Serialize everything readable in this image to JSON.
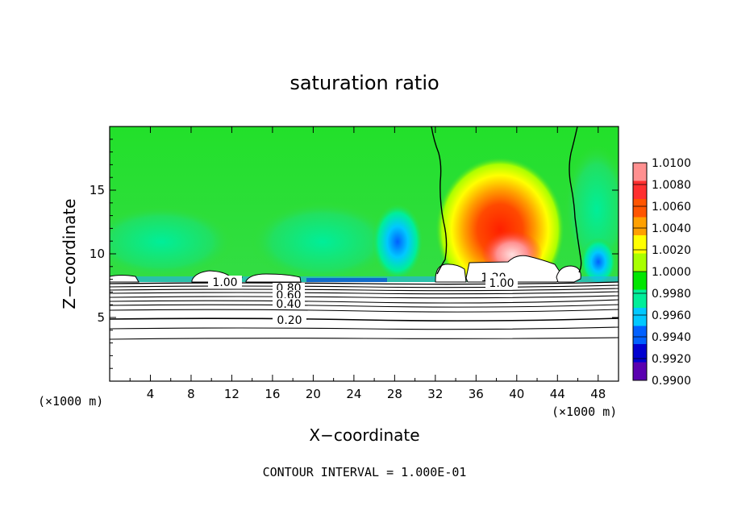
{
  "chart_data": {
    "type": "heatmap",
    "title": "saturation ratio",
    "xlabel": "X−coordinate",
    "ylabel": "Z−coordinate",
    "x_unit": "(×1000 m)",
    "x_unit_right": "(×1000 m)",
    "xlim": [
      0,
      50
    ],
    "ylim": [
      0,
      20
    ],
    "x_ticks": [
      4,
      8,
      12,
      16,
      20,
      24,
      28,
      32,
      36,
      40,
      44,
      48
    ],
    "y_ticks": [
      5,
      10,
      15
    ],
    "colorbar": {
      "levels": [
        "1.0100",
        "1.0080",
        "1.0060",
        "1.0040",
        "1.0020",
        "1.0000",
        "0.9980",
        "0.9960",
        "0.9940",
        "0.9920",
        "0.9900"
      ],
      "colors": [
        "#ff9090",
        "#ff3030",
        "#ff5500",
        "#ffa000",
        "#ffff00",
        "#a8ff00",
        "#00e600",
        "#00ee99",
        "#00c8ff",
        "#0060ff",
        "#0000d0",
        "#5a00b0"
      ]
    },
    "contour_labels": [
      "1.00",
      "0.80",
      "0.60",
      "0.40",
      "0.20",
      "1.20",
      "1.00"
    ],
    "contour_interval_text": "CONTOUR INTERVAL = 1.000E-01",
    "colors": {
      "background_field": "#33dd33",
      "supersaturated_core": "#ff2a00",
      "subsaturated_band": "#1a66ff",
      "cloud_interior": "#ffffff"
    }
  }
}
